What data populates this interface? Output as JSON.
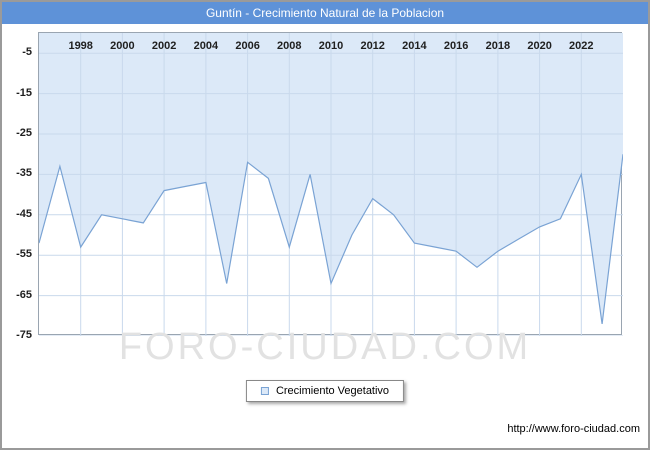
{
  "title": "Guntín - Crecimiento Natural de la Poblacion",
  "legend": {
    "label": "Crecimiento Vegetativo"
  },
  "watermark": "FORO-CIUDAD.COM",
  "footer_url": "http://www.foro-ciudad.com",
  "colors": {
    "titlebar_bg": "#5e92d8",
    "titlebar_text": "#ffffff",
    "area_fill": "#dce9f8",
    "line": "#7aa3d4",
    "grid": "#c9d9ec",
    "plot_border": "#9aa5b1",
    "tick_text": "#1f1f1f",
    "watermark": "#e2e2e2"
  },
  "chart_data": {
    "type": "area",
    "title": "Guntín - Crecimiento Natural de la Poblacion",
    "series": [
      {
        "name": "Crecimiento Vegetativo",
        "x": [
          1996,
          1997,
          1998,
          1999,
          2000,
          2001,
          2002,
          2003,
          2004,
          2005,
          2006,
          2007,
          2008,
          2009,
          2010,
          2011,
          2012,
          2013,
          2014,
          2015,
          2016,
          2017,
          2018,
          2019,
          2020,
          2021,
          2022,
          2023,
          2024
        ],
        "values": [
          -52,
          -33,
          -53,
          -45,
          -46,
          -47,
          -39,
          -38,
          -37,
          -62,
          -32,
          -36,
          -53,
          -35,
          -62,
          -50,
          -41,
          -45,
          -52,
          -53,
          -54,
          -58,
          -54,
          -51,
          -48,
          -46,
          -35,
          -72,
          -30
        ]
      }
    ],
    "xlim": [
      1996,
      2024
    ],
    "ylim": [
      -75,
      0
    ],
    "x_tick_labels": [
      "1998",
      "2000",
      "2002",
      "2004",
      "2006",
      "2008",
      "2010",
      "2012",
      "2014",
      "2016",
      "2018",
      "2020",
      "2022"
    ],
    "y_tick_labels": [
      "-5",
      "-15",
      "-25",
      "-35",
      "-45",
      "-55",
      "-65",
      "-75"
    ],
    "grid": true,
    "legend_position": "bottom-center"
  }
}
